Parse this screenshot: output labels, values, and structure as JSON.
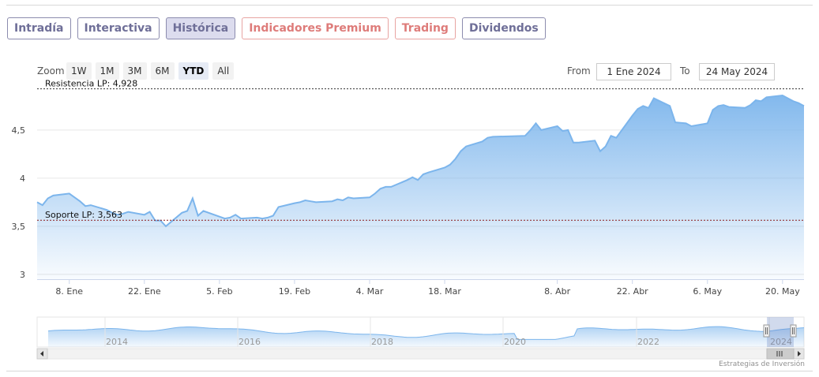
{
  "tabs": [
    {
      "label": "Intradía",
      "style": "normal"
    },
    {
      "label": "Interactiva",
      "style": "normal"
    },
    {
      "label": "Histórica",
      "style": "active"
    },
    {
      "label": "Indicadores Premium",
      "style": "premium"
    },
    {
      "label": "Trading",
      "style": "premium"
    },
    {
      "label": "Dividendos",
      "style": "normal"
    }
  ],
  "zoom": {
    "label": "Zoom",
    "buttons": [
      "1W",
      "1M",
      "3M",
      "6M",
      "YTD",
      "All"
    ],
    "selected": "YTD"
  },
  "range": {
    "from_label": "From",
    "from_value": "1 Ene 2024",
    "to_label": "To",
    "to_value": "24 May 2024"
  },
  "credit": "Estrategias de Inversión",
  "colors": {
    "line": "#7cb5ec",
    "fill_top": "#7cb5ec",
    "resistance": "#333333",
    "support": "#8b1a1a",
    "tab_border": "#8c8cae",
    "premium_border": "#e8a4a2"
  },
  "chart_data": {
    "type": "area",
    "y_ticks": [
      3,
      3.5,
      4,
      4.5
    ],
    "y_tick_labels": [
      "3",
      "3,5",
      "4",
      "4,5"
    ],
    "ylim": [
      2.95,
      4.95
    ],
    "x_ticks": [
      "2024-01-08",
      "2024-01-22",
      "2024-02-05",
      "2024-02-19",
      "2024-03-04",
      "2024-03-18",
      "2024-04-08",
      "2024-04-22",
      "2024-05-06",
      "2024-05-20"
    ],
    "x_tick_labels": [
      "8. Ene",
      "22. Ene",
      "5. Feb",
      "19. Feb",
      "4. Mar",
      "18. Mar",
      "8. Abr",
      "22. Abr",
      "6. May",
      "20. May"
    ],
    "xlim": [
      "2024-01-02",
      "2024-05-24"
    ],
    "resistance": {
      "label": "Resistencia LP: 4,928",
      "value": 4.928
    },
    "support": {
      "label": "Soporte LP: 3,563",
      "value": 3.563
    },
    "series": [
      {
        "x": [
          "2024-01-02",
          "2024-01-03",
          "2024-01-04",
          "2024-01-05",
          "2024-01-08",
          "2024-01-09",
          "2024-01-10",
          "2024-01-11",
          "2024-01-12",
          "2024-01-15",
          "2024-01-16",
          "2024-01-17",
          "2024-01-18",
          "2024-01-19",
          "2024-01-22",
          "2024-01-23",
          "2024-01-24",
          "2024-01-25",
          "2024-01-26",
          "2024-01-29",
          "2024-01-30",
          "2024-01-31",
          "2024-02-01",
          "2024-02-02",
          "2024-02-05",
          "2024-02-06",
          "2024-02-07",
          "2024-02-08",
          "2024-02-09",
          "2024-02-12",
          "2024-02-13",
          "2024-02-14",
          "2024-02-15",
          "2024-02-16",
          "2024-02-19",
          "2024-02-20",
          "2024-02-21",
          "2024-02-22",
          "2024-02-23",
          "2024-02-26",
          "2024-02-27",
          "2024-02-28",
          "2024-02-29",
          "2024-03-01",
          "2024-03-04",
          "2024-03-05",
          "2024-03-06",
          "2024-03-07",
          "2024-03-08",
          "2024-03-11",
          "2024-03-12",
          "2024-03-13",
          "2024-03-14",
          "2024-03-15",
          "2024-03-18",
          "2024-03-19",
          "2024-03-20",
          "2024-03-21",
          "2024-03-22",
          "2024-03-25",
          "2024-03-26",
          "2024-03-27",
          "2024-04-02",
          "2024-04-03",
          "2024-04-04",
          "2024-04-05",
          "2024-04-08",
          "2024-04-09",
          "2024-04-10",
          "2024-04-11",
          "2024-04-12",
          "2024-04-15",
          "2024-04-16",
          "2024-04-17",
          "2024-04-18",
          "2024-04-19",
          "2024-04-22",
          "2024-04-23",
          "2024-04-24",
          "2024-04-25",
          "2024-04-26",
          "2024-04-29",
          "2024-04-30",
          "2024-05-02",
          "2024-05-03",
          "2024-05-06",
          "2024-05-07",
          "2024-05-08",
          "2024-05-09",
          "2024-05-10",
          "2024-05-13",
          "2024-05-14",
          "2024-05-15",
          "2024-05-16",
          "2024-05-17",
          "2024-05-20",
          "2024-05-21",
          "2024-05-22",
          "2024-05-23",
          "2024-05-24"
        ],
        "y": [
          3.75,
          3.72,
          3.79,
          3.82,
          3.84,
          3.8,
          3.76,
          3.71,
          3.72,
          3.67,
          3.64,
          3.62,
          3.63,
          3.65,
          3.62,
          3.65,
          3.56,
          3.56,
          3.5,
          3.64,
          3.66,
          3.79,
          3.61,
          3.66,
          3.6,
          3.58,
          3.59,
          3.62,
          3.58,
          3.59,
          3.58,
          3.59,
          3.61,
          3.7,
          3.74,
          3.75,
          3.77,
          3.76,
          3.75,
          3.76,
          3.78,
          3.77,
          3.8,
          3.79,
          3.8,
          3.84,
          3.89,
          3.91,
          3.91,
          3.98,
          4.01,
          3.98,
          4.04,
          4.06,
          4.11,
          4.14,
          4.2,
          4.28,
          4.33,
          4.38,
          4.42,
          4.43,
          4.44,
          4.5,
          4.57,
          4.5,
          4.54,
          4.49,
          4.5,
          4.37,
          4.37,
          4.39,
          4.28,
          4.33,
          4.44,
          4.42,
          4.65,
          4.72,
          4.75,
          4.73,
          4.83,
          4.75,
          4.58,
          4.57,
          4.54,
          4.57,
          4.71,
          4.75,
          4.76,
          4.74,
          4.73,
          4.76,
          4.81,
          4.8,
          4.84,
          4.86,
          4.83,
          4.8,
          4.78,
          4.75
        ]
      }
    ],
    "navigator": {
      "x_tick_labels": [
        "2014",
        "2016",
        "2018",
        "2020",
        "2022",
        "2024"
      ]
    }
  }
}
